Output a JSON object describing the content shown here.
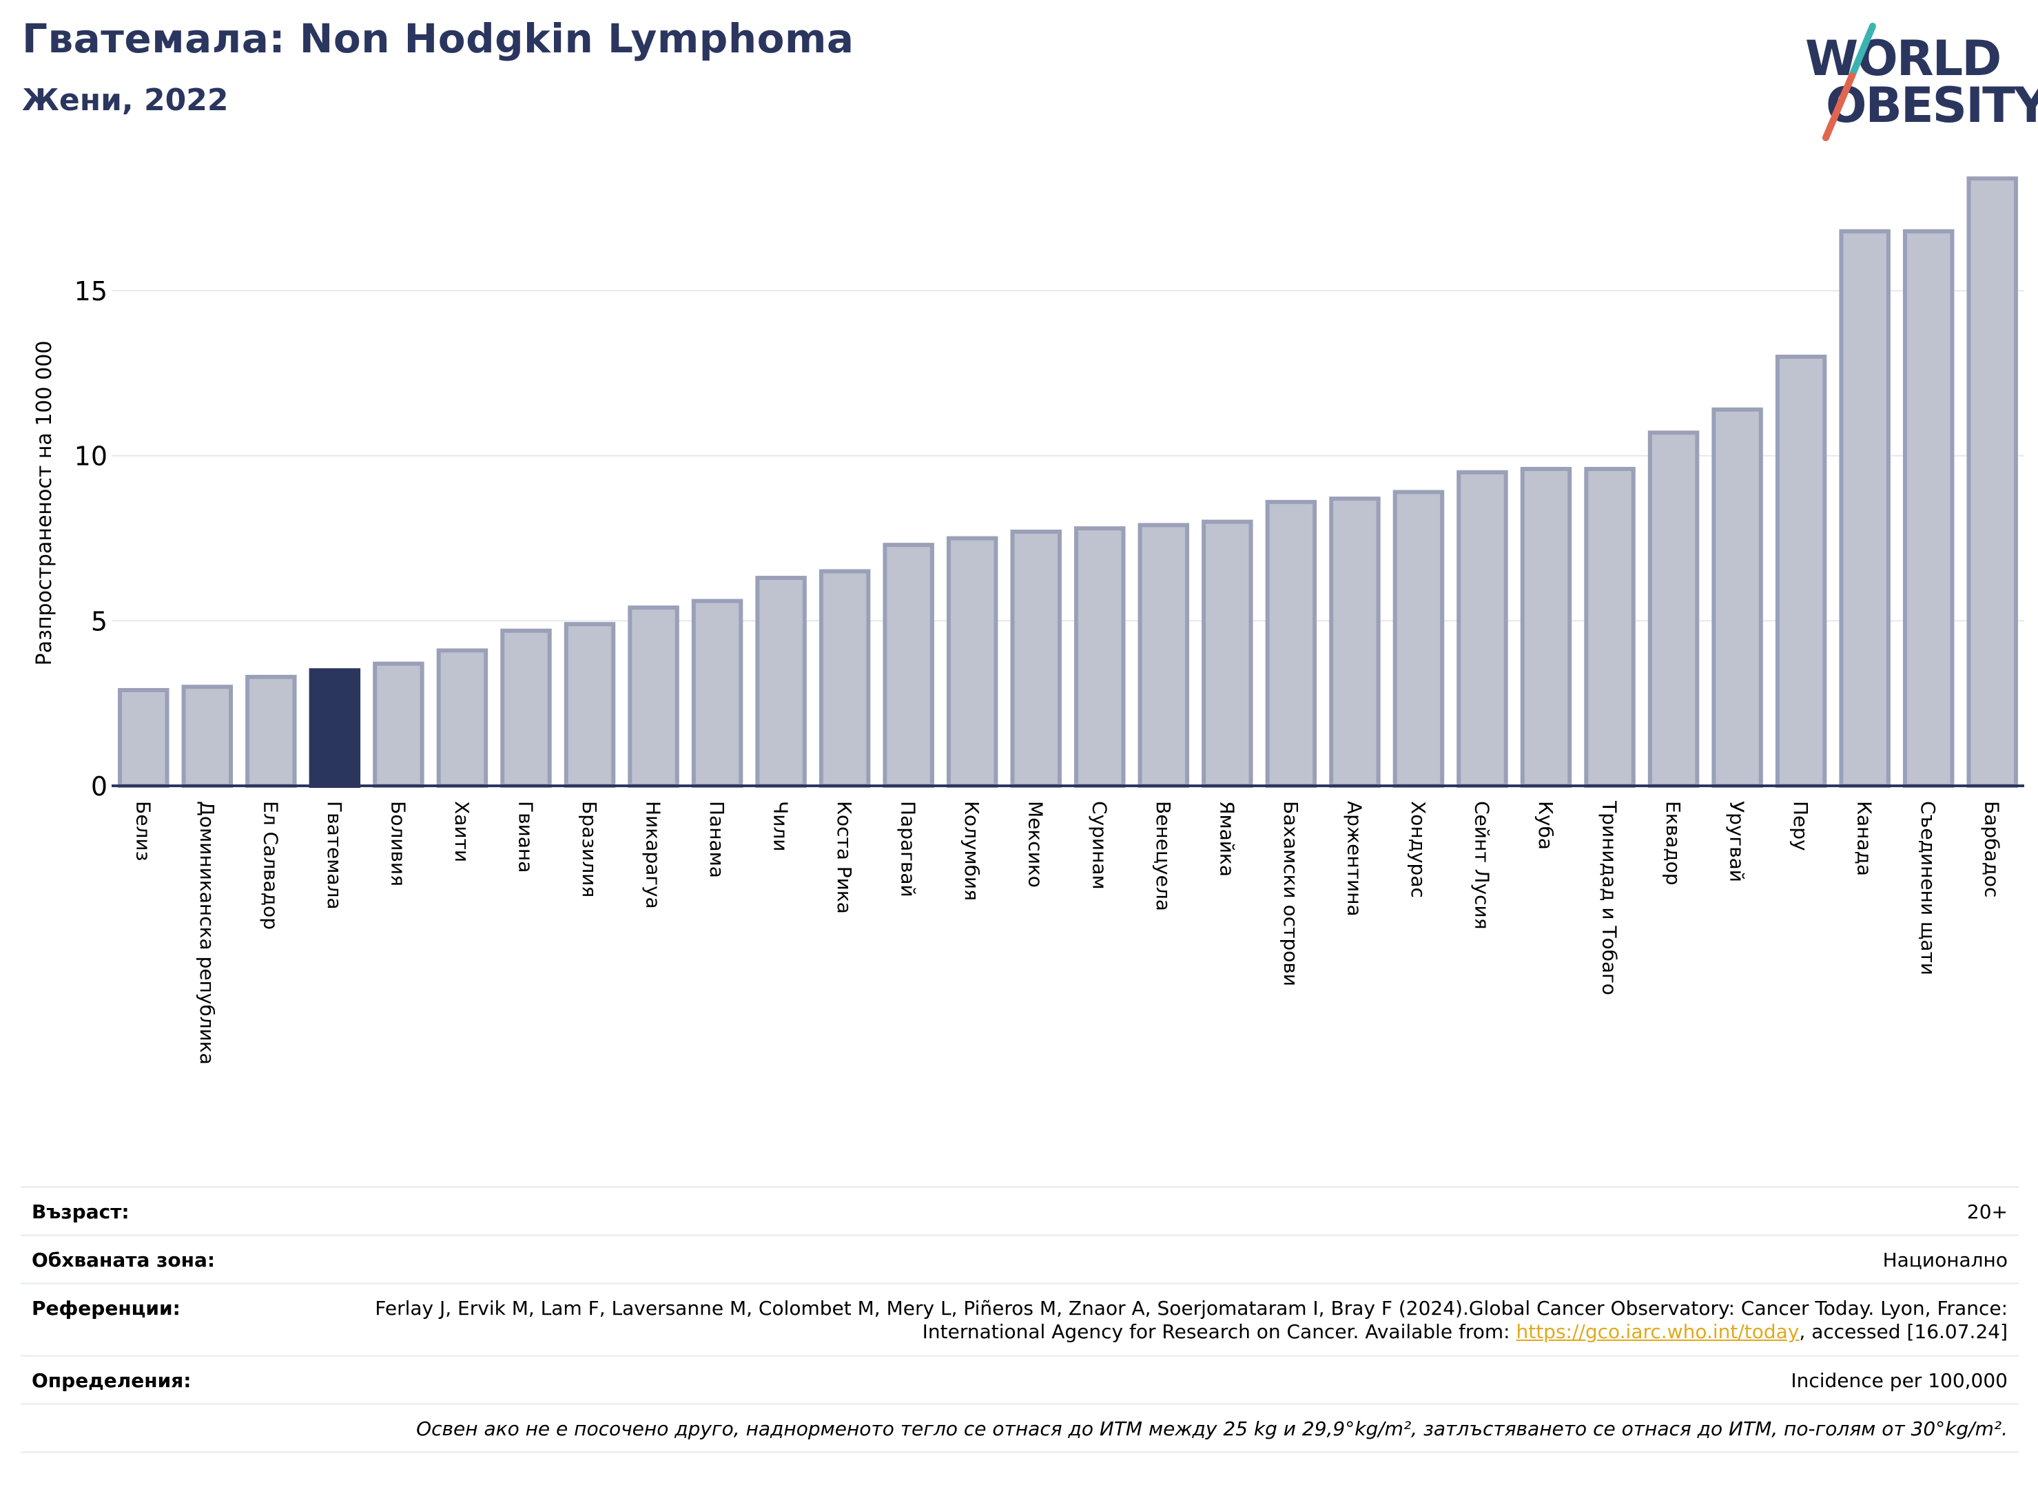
{
  "header": {
    "title": "Гватемала: Non Hodgkin Lymphoma",
    "subtitle": "Жени, 2022"
  },
  "logo": {
    "line1": "WORLD",
    "line2": "OBESITY",
    "slash_colors": [
      "#3bb3b1",
      "#e0664f"
    ]
  },
  "colors": {
    "highlight": "#2b365f",
    "bar_fill": "#bfc2cf",
    "bar_edge": "#9aa0b8",
    "axis": "#2b365f",
    "link": "#e0a91f"
  },
  "chart_data": {
    "type": "bar",
    "ylabel": "Разпространеност  на 100 000",
    "ylim": [
      0,
      18.8
    ],
    "yticks": [
      0,
      5,
      10,
      15
    ],
    "grid": true,
    "highlight_category": "Гватемала",
    "categories": [
      "Белиз",
      "Доминиканска република",
      "Ел Салвадор",
      "Гватемала",
      "Боливия",
      "Хаити",
      "Гвиана",
      "Бразилия",
      "Никарагуа",
      "Панама",
      "Чили",
      "Коста Рика",
      "Парагвай",
      "Колумбия",
      "Мексико",
      "Суринам",
      "Венецуела",
      "Ямайка",
      "Бахамски острови",
      "Аржентина",
      "Хондурас",
      "Сейнт Лусия",
      "Куба",
      "Тринидад и Тобаго",
      "Еквадор",
      "Уругвай",
      "Перу",
      "Канада",
      "Съединени щати",
      "Барбадос"
    ],
    "values": [
      2.9,
      3.0,
      3.3,
      3.5,
      3.7,
      4.1,
      4.7,
      4.9,
      5.4,
      5.6,
      6.3,
      6.5,
      7.3,
      7.5,
      7.7,
      7.8,
      7.9,
      8.0,
      8.6,
      8.7,
      8.9,
      9.5,
      9.6,
      9.6,
      10.7,
      11.4,
      13.0,
      16.8,
      16.8,
      18.4
    ]
  },
  "info": {
    "age_label": "Възраст:",
    "age_value": "20+",
    "coverage_label": "Обхваната зона:",
    "coverage_value": "Национално",
    "refs_label": "Референции:",
    "refs_text_1": "Ferlay J, Ervik M, Lam F, Laversanne M, Colombet M, Mery L, Piñeros M, Znaor A, Soerjomataram I, Bray F (2024).Global Cancer Observatory: Cancer Today. Lyon, France: International Agency for Research on Cancer. Available from: ",
    "refs_link": "https://gco.iarc.who.int/today",
    "refs_text_2": ", accessed [16.07.24]",
    "definitions_label": "Определения:",
    "definitions_value": "Incidence per 100,000",
    "note": "Освен ако не е посочено друго, наднорменото тегло се отнася до ИТМ между 25 kg и 29,9°kg/m², затлъстяването се отнася до ИТМ, по-голям от 30°kg/m²."
  }
}
